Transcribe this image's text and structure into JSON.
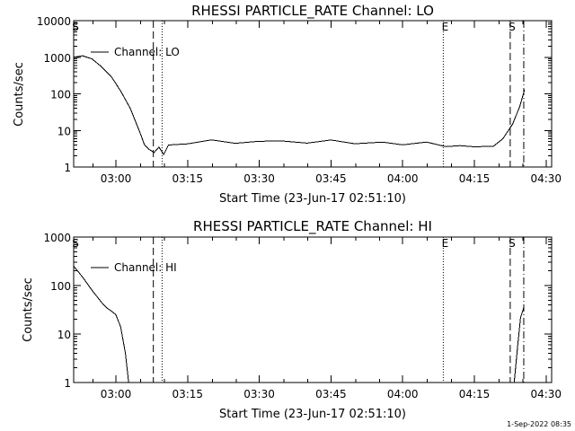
{
  "chart_data": [
    {
      "type": "line",
      "title": "RHESSI PARTICLE_RATE Channel: LO",
      "xlabel": "Start Time (23-Jun-17 02:51:10)",
      "ylabel": "Counts/sec",
      "yscale": "log",
      "ylim": [
        1,
        10000
      ],
      "xlim": [
        "02:51:10",
        "04:31:10"
      ],
      "x_ticks": [
        "03:00",
        "03:15",
        "03:30",
        "03:45",
        "04:00",
        "04:15",
        "04:30"
      ],
      "y_ticks": [
        "1",
        "10",
        "100",
        "1000",
        "10000"
      ],
      "legend": "top-left",
      "series": [
        {
          "name": "Channel: LO",
          "x": [
            "02:51:10",
            "02:53:00",
            "02:55:00",
            "02:57:00",
            "02:59:00",
            "03:01:00",
            "03:03:00",
            "03:05:00",
            "03:06:00",
            "03:07:00",
            "03:08:00",
            "03:09:00",
            "03:10:00",
            "03:11:00",
            "03:15:00",
            "03:20:00",
            "03:25:00",
            "03:30:00",
            "03:35:00",
            "03:40:00",
            "03:45:00",
            "03:50:00",
            "03:54:00",
            "03:56:00",
            "04:00:00",
            "04:05:00",
            "04:09:00",
            "04:12:00",
            "04:15:00",
            "04:19:00",
            "04:21:00",
            "04:23:00",
            "04:24:30",
            "04:25:30"
          ],
          "values": [
            1000,
            1100,
            900,
            550,
            300,
            120,
            40,
            9,
            4,
            3,
            2.5,
            3.5,
            2.2,
            4,
            4.8,
            5,
            4.7,
            5.1,
            4.8,
            5,
            4.9,
            4.7,
            4.5,
            4.6,
            4.4,
            4.3,
            4,
            3.6,
            3.6,
            3.7,
            6,
            15,
            45,
            130
          ]
        }
      ],
      "markers": [
        {
          "label": "S",
          "time": "02:51:10",
          "style": "dotted"
        },
        {
          "label": "",
          "time": "03:07:50",
          "style": "dashed"
        },
        {
          "label": "",
          "time": "03:09:40",
          "style": "dotted"
        },
        {
          "label": "E",
          "time": "04:08:30",
          "style": "dotted"
        },
        {
          "label": "S",
          "time": "04:22:30",
          "style": "dashed"
        },
        {
          "label": "",
          "time": "04:25:20",
          "style": "dashdot"
        }
      ]
    },
    {
      "type": "line",
      "title": "RHESSI PARTICLE_RATE Channel: HI",
      "xlabel": "Start Time (23-Jun-17 02:51:10)",
      "ylabel": "Counts/sec",
      "yscale": "log",
      "ylim": [
        1,
        1000
      ],
      "xlim": [
        "02:51:10",
        "04:31:10"
      ],
      "x_ticks": [
        "03:00",
        "03:15",
        "03:30",
        "03:45",
        "04:00",
        "04:15",
        "04:30"
      ],
      "y_ticks": [
        "1",
        "10",
        "100",
        "1000"
      ],
      "legend": "top-left",
      "series": [
        {
          "name": "Channel: HI",
          "x": [
            "02:51:10",
            "02:52:00",
            "02:53:00",
            "02:54:00",
            "02:55:00",
            "02:56:00",
            "02:57:00",
            "02:58:00",
            "02:59:00",
            "03:00:00",
            "03:01:00",
            "03:02:00",
            "03:02:40"
          ],
          "values": [
            250,
            200,
            150,
            110,
            80,
            60,
            45,
            35,
            30,
            25,
            14,
            4,
            1
          ]
        },
        {
          "name": "",
          "x": [
            "04:23:20",
            "04:24:00",
            "04:24:40",
            "04:25:20"
          ],
          "values": [
            1,
            5,
            22,
            35
          ]
        }
      ],
      "markers": [
        {
          "label": "S",
          "time": "02:51:10",
          "style": "dotted"
        },
        {
          "label": "",
          "time": "03:07:50",
          "style": "dashed"
        },
        {
          "label": "",
          "time": "03:09:40",
          "style": "dotted"
        },
        {
          "label": "E",
          "time": "04:08:30",
          "style": "dotted"
        },
        {
          "label": "S",
          "time": "04:22:30",
          "style": "dashed"
        },
        {
          "label": "",
          "time": "04:25:20",
          "style": "dashdot"
        }
      ]
    }
  ],
  "footer": {
    "timestamp": "1-Sep-2022 08:35"
  }
}
